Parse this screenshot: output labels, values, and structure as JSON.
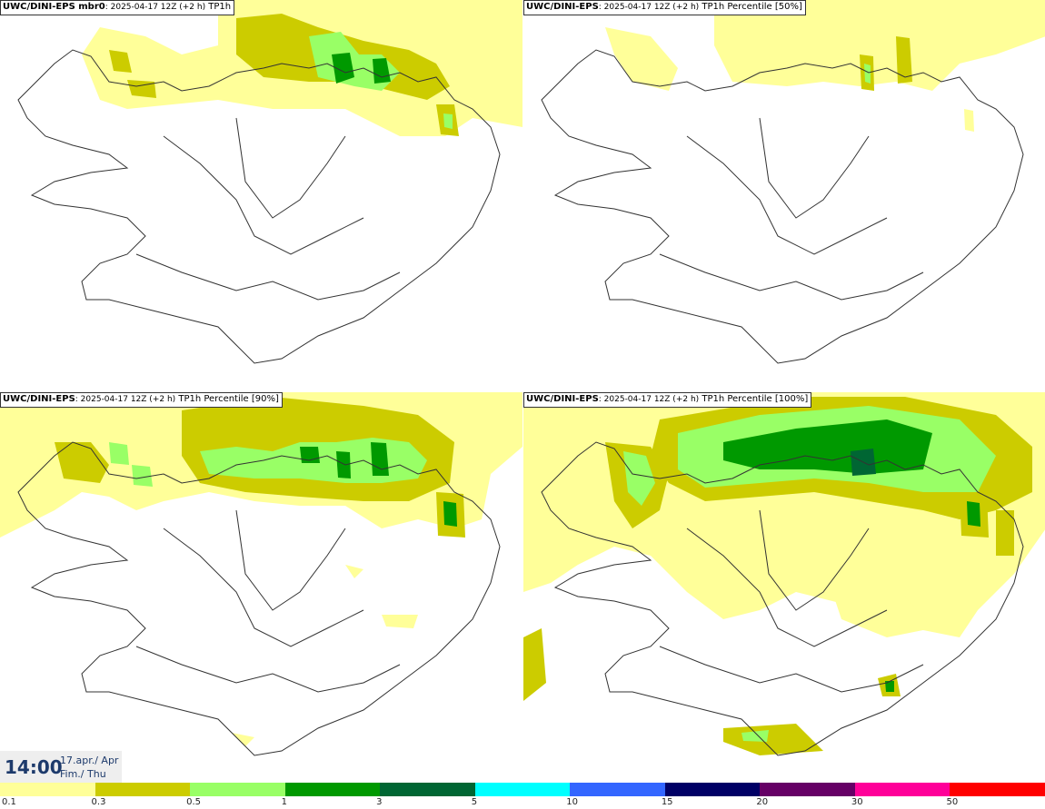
{
  "panels": [
    {
      "model": "UWC/DINI-EPS mbr0",
      "run": ": 2025-04-17 12Z (+2 h)",
      "param": " TP1h"
    },
    {
      "model": "UWC/DINI-EPS",
      "run": ": 2025-04-17 12Z (+2 h)",
      "param": " TP1h Percentile [50%]"
    },
    {
      "model": "UWC/DINI-EPS",
      "run": ": 2025-04-17 12Z (+2 h)",
      "param": " TP1h Percentile [90%]"
    },
    {
      "model": "UWC/DINI-EPS",
      "run": ": 2025-04-17 12Z (+2 h)",
      "param": " TP1h Percentile [100%]"
    }
  ],
  "time": {
    "hour": "14:00",
    "date_line1": "17.apr./ Apr",
    "date_line2": "Fim./ Thu"
  },
  "legend": {
    "ticks": [
      "0.1",
      "0.3",
      "0.5",
      "1",
      "3",
      "5",
      "10",
      "15",
      "20",
      "30",
      "50"
    ],
    "colors": [
      "#ffff99",
      "#cccc00",
      "#99ff66",
      "#009900",
      "#006633",
      "#00ffff",
      "#3366ff",
      "#000066",
      "#660066",
      "#ff0099",
      "#ff0000"
    ]
  },
  "map_colors": {
    "light": "#ffff99",
    "mid": "#cccc00",
    "lightgreen": "#99ff66",
    "green": "#009900",
    "darkgreen": "#006633",
    "coast": "#333333"
  }
}
